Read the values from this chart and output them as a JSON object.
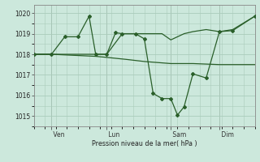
{
  "background_color": "#cce8dc",
  "grid_color": "#aaccbb",
  "line_color": "#2a5f2a",
  "ylabel": "Pression niveau de la mer( hPa )",
  "ylim": [
    1014.5,
    1020.4
  ],
  "yticks": [
    1015,
    1016,
    1017,
    1018,
    1019,
    1020
  ],
  "xtick_labels": [
    " Ven",
    " Lun",
    " Sam",
    " Dim"
  ],
  "xtick_positions": [
    0.08,
    0.33,
    0.62,
    0.84
  ],
  "lines": [
    {
      "x": [
        0.0,
        0.08,
        0.18,
        0.28,
        0.33,
        0.42,
        0.5,
        0.62,
        0.72,
        0.84,
        1.0
      ],
      "y": [
        1018.0,
        1018.0,
        1017.95,
        1017.9,
        1017.85,
        1017.75,
        1017.65,
        1017.55,
        1017.55,
        1017.5,
        1017.5
      ]
    },
    {
      "x": [
        0.0,
        0.08,
        0.18,
        0.25,
        0.33,
        0.4,
        0.5,
        0.58,
        0.62,
        0.68,
        0.72,
        0.78,
        0.84,
        0.9,
        1.0
      ],
      "y": [
        1018.0,
        1018.0,
        1018.0,
        1018.0,
        1018.0,
        1019.0,
        1019.0,
        1019.0,
        1018.7,
        1019.0,
        1019.1,
        1019.2,
        1019.1,
        1019.2,
        1019.85
      ]
    },
    {
      "x": [
        0.0,
        0.08,
        0.14,
        0.2,
        0.25,
        0.28,
        0.33,
        0.37,
        0.4,
        0.46,
        0.5,
        0.54,
        0.58,
        0.62,
        0.65,
        0.68,
        0.72,
        0.78,
        0.84,
        0.9,
        1.0
      ],
      "y": [
        1018.0,
        1018.0,
        1018.85,
        1018.85,
        1019.85,
        1018.0,
        1018.0,
        1019.05,
        1019.0,
        1019.0,
        1018.75,
        1016.1,
        1015.85,
        1015.85,
        1015.05,
        1015.45,
        1017.05,
        1016.85,
        1019.1,
        1019.15,
        1019.85
      ],
      "marker": true
    }
  ]
}
